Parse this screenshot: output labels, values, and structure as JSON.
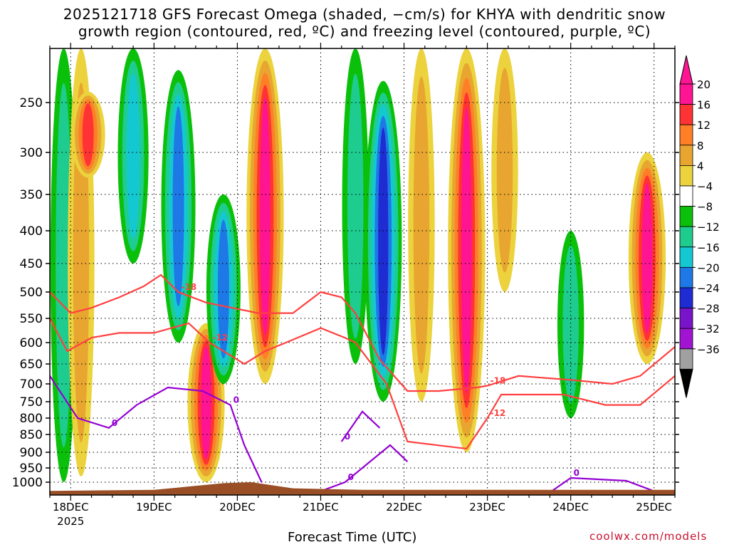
{
  "title_line1": "2025121718 GFS Forecast Omega (shaded, −cm/s) for KHYA with dendritic snow",
  "title_line2": "growth region (contoured, red, ºC) and freezing level (contoured, purple, ºC)",
  "xlabel": "Forecast Time (UTC)",
  "credit": "coolwx.com/models",
  "chart_data": {
    "type": "heatmap",
    "title": "2025121718 GFS Forecast Omega (shaded, −cm/s) for KHYA with dendritic snow growth region (contoured, red, ºC) and freezing level (contoured, purple, ºC)",
    "xlabel": "Forecast Time (UTC)",
    "ylabel": "",
    "x_ticks": [
      {
        "label": "18DEC",
        "sub": "2025",
        "hour": 6
      },
      {
        "label": "19DEC",
        "sub": "",
        "hour": 30
      },
      {
        "label": "20DEC",
        "sub": "",
        "hour": 54
      },
      {
        "label": "21DEC",
        "sub": "",
        "hour": 78
      },
      {
        "label": "22DEC",
        "sub": "",
        "hour": 102
      },
      {
        "label": "23DEC",
        "sub": "",
        "hour": 126
      },
      {
        "label": "24DEC",
        "sub": "",
        "hour": 150
      },
      {
        "label": "25DEC",
        "sub": "",
        "hour": 174
      }
    ],
    "xlim_hours": [
      0,
      180
    ],
    "y_ticks": [
      250,
      300,
      350,
      400,
      450,
      500,
      550,
      600,
      650,
      700,
      750,
      800,
      850,
      900,
      950,
      1000
    ],
    "ylim_hpa": [
      1025,
      200
    ],
    "grid": true,
    "colorbar": {
      "ticks": [
        "20",
        "16",
        "12",
        "8",
        "4",
        "−4",
        "−8",
        "−12",
        "−16",
        "−20",
        "−24",
        "−28",
        "−32",
        "−36"
      ],
      "colors": [
        "#ff1493",
        "#ff3333",
        "#ff7f27",
        "#e8a630",
        "#ecd23c",
        "#ffffff",
        "#0ac00a",
        "#1fcc8f",
        "#14c8d2",
        "#1e78e6",
        "#1e2cd2",
        "#7a14c8",
        "#a014d2",
        "#a0a0a0"
      ],
      "top_color": "#ff1493",
      "bottom_color": "#000000"
    },
    "omega_features": [
      {
        "hour": 4,
        "p_top": 200,
        "p_bot": 1000,
        "value": -8
      },
      {
        "hour": 9,
        "p_top": 200,
        "p_bot": 980,
        "value": 8
      },
      {
        "hour": 11,
        "p_top": 240,
        "p_bot": 330,
        "value": 16
      },
      {
        "hour": 24,
        "p_top": 200,
        "p_bot": 450,
        "value": -12
      },
      {
        "hour": 37,
        "p_top": 220,
        "p_bot": 600,
        "value": -16
      },
      {
        "hour": 45,
        "p_top": 560,
        "p_bot": 1000,
        "value": 20
      },
      {
        "hour": 50,
        "p_top": 350,
        "p_bot": 700,
        "value": -16
      },
      {
        "hour": 62,
        "p_top": 200,
        "p_bot": 700,
        "value": 20
      },
      {
        "hour": 88,
        "p_top": 200,
        "p_bot": 650,
        "value": -8
      },
      {
        "hour": 96,
        "p_top": 230,
        "p_bot": 750,
        "value": -20
      },
      {
        "hour": 107,
        "p_top": 200,
        "p_bot": 750,
        "value": 8
      },
      {
        "hour": 120,
        "p_top": 200,
        "p_bot": 900,
        "value": 20
      },
      {
        "hour": 131,
        "p_top": 200,
        "p_bot": 500,
        "value": 8
      },
      {
        "hour": 150,
        "p_top": 400,
        "p_bot": 800,
        "value": -8
      },
      {
        "hour": 172,
        "p_top": 300,
        "p_bot": 650,
        "value": 20
      }
    ],
    "contours": [
      {
        "label": "-18",
        "color": "#ff4040",
        "points": [
          [
            0,
            500
          ],
          [
            6,
            540
          ],
          [
            12,
            530
          ],
          [
            20,
            510
          ],
          [
            27,
            490
          ],
          [
            32,
            470
          ],
          [
            37,
            500
          ],
          [
            45,
            520
          ],
          [
            60,
            540
          ],
          [
            70,
            540
          ],
          [
            78,
            500
          ],
          [
            84,
            510
          ],
          [
            88,
            540
          ],
          [
            95,
            640
          ],
          [
            103,
            720
          ],
          [
            112,
            720
          ],
          [
            123,
            710
          ],
          [
            126,
            705
          ],
          [
            135,
            680
          ],
          [
            150,
            690
          ],
          [
            162,
            700
          ],
          [
            170,
            680
          ],
          [
            180,
            610
          ]
        ]
      },
      {
        "label": "-12",
        "color": "#ff4040",
        "points": [
          [
            0,
            550
          ],
          [
            5,
            620
          ],
          [
            12,
            590
          ],
          [
            20,
            580
          ],
          [
            30,
            580
          ],
          [
            40,
            560
          ],
          [
            46,
            600
          ],
          [
            56,
            650
          ],
          [
            62,
            620
          ],
          [
            68,
            600
          ],
          [
            78,
            570
          ],
          [
            85,
            590
          ],
          [
            88,
            600
          ],
          [
            97,
            700
          ],
          [
            103,
            870
          ],
          [
            120,
            890
          ],
          [
            126,
            800
          ],
          [
            130,
            730
          ],
          [
            148,
            730
          ],
          [
            160,
            760
          ],
          [
            170,
            760
          ],
          [
            180,
            680
          ]
        ]
      },
      {
        "label": "0",
        "color": "#9400d3",
        "points": [
          [
            0,
            680
          ],
          [
            8,
            800
          ],
          [
            17,
            830
          ],
          [
            25,
            760
          ],
          [
            34,
            710
          ],
          [
            44,
            720
          ],
          [
            52,
            760
          ],
          [
            56,
            880
          ],
          [
            61,
            1000
          ]
        ]
      },
      {
        "label": "0",
        "color": "#9400d3",
        "points": [
          [
            75,
            1025
          ],
          [
            85,
            1000
          ],
          [
            98,
            880
          ],
          [
            103,
            930
          ]
        ]
      },
      {
        "label": "0",
        "color": "#9400d3",
        "points": [
          [
            84,
            870
          ],
          [
            90,
            780
          ],
          [
            95,
            830
          ]
        ]
      },
      {
        "label": "0",
        "color": "#9400d3",
        "points": [
          [
            144,
            1020
          ],
          [
            150,
            985
          ],
          [
            166,
            995
          ],
          [
            175,
            1020
          ]
        ]
      }
    ]
  }
}
